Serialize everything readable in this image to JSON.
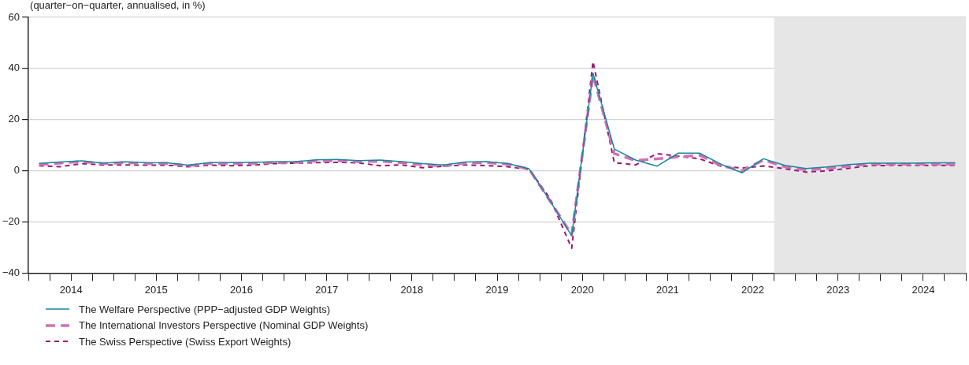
{
  "chart_data": {
    "type": "line",
    "title": "(quarter−on−quarter, annualised, in %)",
    "x": [
      2014.125,
      2014.375,
      2014.625,
      2014.875,
      2015.125,
      2015.375,
      2015.625,
      2015.875,
      2016.125,
      2016.375,
      2016.625,
      2016.875,
      2017.125,
      2017.375,
      2017.625,
      2017.875,
      2018.125,
      2018.375,
      2018.625,
      2018.875,
      2019.125,
      2019.375,
      2019.625,
      2019.875,
      2020.125,
      2020.375,
      2020.625,
      2020.875,
      2021.125,
      2021.375,
      2021.625,
      2021.875,
      2022.125,
      2022.375,
      2022.625,
      2022.875,
      2023.125,
      2023.375,
      2023.625,
      2023.875,
      2024.125,
      2024.375,
      2024.625,
      2024.875
    ],
    "series": [
      {
        "name": "The Welfare Perspective (PPP−adjusted GDP Weights)",
        "color": "#16899c",
        "line_style": "solid",
        "values": [
          2.9,
          3.4,
          3.9,
          3.0,
          3.5,
          3.2,
          3.1,
          2.2,
          3.2,
          3.2,
          3.3,
          3.5,
          3.5,
          4.3,
          4.4,
          4.0,
          4.2,
          3.6,
          2.8,
          2.3,
          3.4,
          3.6,
          2.8,
          0.8,
          -12,
          -25.4,
          38.1,
          8.5,
          4.2,
          1.8,
          6.9,
          6.9,
          2.6,
          -0.8,
          4.7,
          2.1,
          0.9,
          1.5,
          2.4,
          3.0,
          3.0,
          3.0,
          3.1,
          3.1
        ]
      },
      {
        "name": "The International Investors Perspective (Nominal GDP Weights)",
        "color": "#d470b4",
        "line_style": "dashed",
        "values": [
          2.4,
          3.0,
          3.6,
          2.8,
          3.2,
          2.8,
          2.9,
          2.0,
          2.8,
          2.8,
          2.9,
          3.2,
          3.3,
          3.8,
          3.9,
          3.6,
          3.7,
          3.2,
          2.3,
          2.0,
          3.0,
          3.2,
          2.6,
          0.7,
          -12,
          -25,
          37.5,
          6.7,
          4.0,
          4.7,
          5.4,
          6.1,
          2.1,
          0,
          4.2,
          1.6,
          0.3,
          0.9,
          1.8,
          2.6,
          2.6,
          2.6,
          2.6,
          2.6
        ]
      },
      {
        "name": "The Swiss Perspective (Swiss Export Weights)",
        "color": "#9a1772",
        "line_style": "dashed",
        "values": [
          2.0,
          1.6,
          2.8,
          2.3,
          2.3,
          2.2,
          2.2,
          1.6,
          2.2,
          2.0,
          2.2,
          2.8,
          3.0,
          3.2,
          3.3,
          3.1,
          2.0,
          2.3,
          1.2,
          1.8,
          2.3,
          2.0,
          1.6,
          0.6,
          -11,
          -30.3,
          42.7,
          3.2,
          2.3,
          6.7,
          5.7,
          4.7,
          1.8,
          1.1,
          1.9,
          0.8,
          -0.5,
          0,
          1.0,
          2.0,
          2.1,
          2.1,
          2.1,
          2.1
        ]
      }
    ],
    "xlim": [
      2014,
      2025
    ],
    "xticks": [
      {
        "value": 2014,
        "label": null
      },
      {
        "value": 2014.25,
        "label": null
      },
      {
        "value": 2014.5,
        "label": "2014"
      },
      {
        "value": 2014.75,
        "label": null
      },
      {
        "value": 2015,
        "label": null
      },
      {
        "value": 2015.25,
        "label": null
      },
      {
        "value": 2015.5,
        "label": "2015"
      },
      {
        "value": 2015.75,
        "label": null
      },
      {
        "value": 2016,
        "label": null
      },
      {
        "value": 2016.25,
        "label": null
      },
      {
        "value": 2016.5,
        "label": "2016"
      },
      {
        "value": 2016.75,
        "label": null
      },
      {
        "value": 2017,
        "label": null
      },
      {
        "value": 2017.25,
        "label": null
      },
      {
        "value": 2017.5,
        "label": "2017"
      },
      {
        "value": 2017.75,
        "label": null
      },
      {
        "value": 2018,
        "label": null
      },
      {
        "value": 2018.25,
        "label": null
      },
      {
        "value": 2018.5,
        "label": "2018"
      },
      {
        "value": 2018.75,
        "label": null
      },
      {
        "value": 2019,
        "label": null
      },
      {
        "value": 2019.25,
        "label": null
      },
      {
        "value": 2019.5,
        "label": "2019"
      },
      {
        "value": 2019.75,
        "label": null
      },
      {
        "value": 2020,
        "label": null
      },
      {
        "value": 2020.25,
        "label": null
      },
      {
        "value": 2020.5,
        "label": "2020"
      },
      {
        "value": 2020.75,
        "label": null
      },
      {
        "value": 2021,
        "label": null
      },
      {
        "value": 2021.25,
        "label": null
      },
      {
        "value": 2021.5,
        "label": "2021"
      },
      {
        "value": 2021.75,
        "label": null
      },
      {
        "value": 2022,
        "label": null
      },
      {
        "value": 2022.25,
        "label": null
      },
      {
        "value": 2022.5,
        "label": "2022"
      },
      {
        "value": 2022.75,
        "label": null
      },
      {
        "value": 2023,
        "label": null
      },
      {
        "value": 2023.25,
        "label": null
      },
      {
        "value": 2023.5,
        "label": "2023"
      },
      {
        "value": 2023.75,
        "label": null
      },
      {
        "value": 2024,
        "label": null
      },
      {
        "value": 2024.25,
        "label": null
      },
      {
        "value": 2024.5,
        "label": "2024"
      },
      {
        "value": 2024.75,
        "label": null
      },
      {
        "value": 2025,
        "label": null
      }
    ],
    "ylim": [
      -40,
      60
    ],
    "yticks": [
      -40,
      -20,
      0,
      20,
      40,
      60
    ],
    "bands": [
      {
        "axis": "x",
        "from": 2022.75,
        "to": 2025,
        "color": "#e6e6e6"
      }
    ],
    "grid": "y",
    "legend": "bottom left",
    "marker": "none"
  }
}
